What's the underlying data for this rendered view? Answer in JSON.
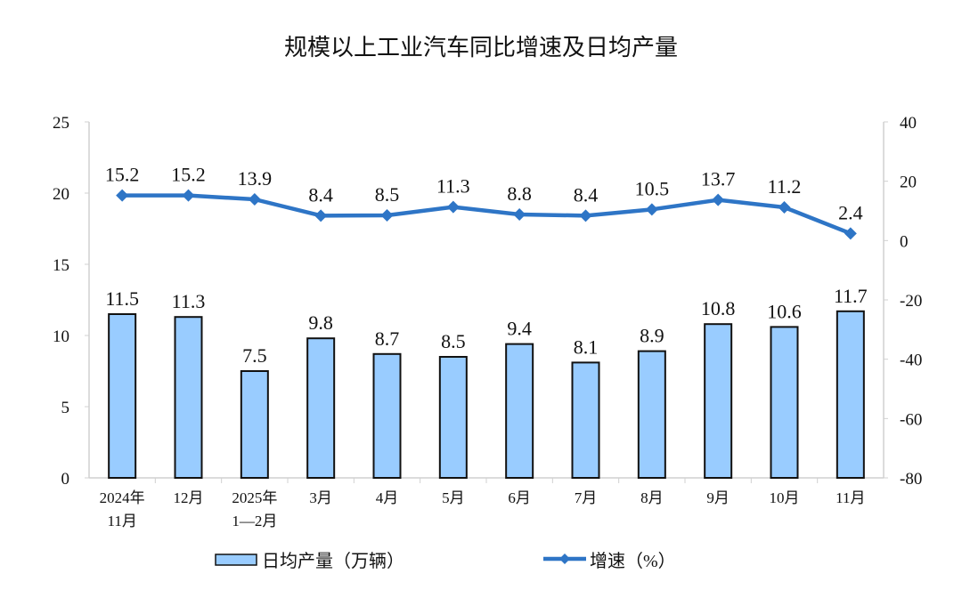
{
  "chart_data": {
    "type": "bar+line",
    "title": "规模以上工业汽车同比增速及日均产量",
    "categories": [
      [
        "2024年",
        "11月"
      ],
      [
        "12月"
      ],
      [
        "2025年",
        "1—2月"
      ],
      [
        "3月"
      ],
      [
        "4月"
      ],
      [
        "5月"
      ],
      [
        "6月"
      ],
      [
        "7月"
      ],
      [
        "8月"
      ],
      [
        "9月"
      ],
      [
        "10月"
      ],
      [
        "11月"
      ]
    ],
    "series": [
      {
        "name": "日均产量（万辆）",
        "type": "bar",
        "axis": "left",
        "color": "#99CCFF",
        "values": [
          11.5,
          11.3,
          7.5,
          9.8,
          8.7,
          8.5,
          9.4,
          8.1,
          8.9,
          10.8,
          10.6,
          11.7
        ]
      },
      {
        "name": "增速（%）",
        "type": "line",
        "axis": "right",
        "color": "#2E75C6",
        "values": [
          15.2,
          15.2,
          13.9,
          8.4,
          8.5,
          11.3,
          8.8,
          8.4,
          10.5,
          13.7,
          11.2,
          2.4
        ]
      }
    ],
    "left_axis": {
      "range": [
        0,
        25
      ],
      "ticks": [
        0,
        5,
        10,
        15,
        20,
        25
      ]
    },
    "right_axis": {
      "range": [
        -80,
        40
      ],
      "ticks": [
        -80,
        -60,
        -40,
        -20,
        0,
        20,
        40
      ]
    },
    "grid": false,
    "legend_position": "bottom"
  }
}
